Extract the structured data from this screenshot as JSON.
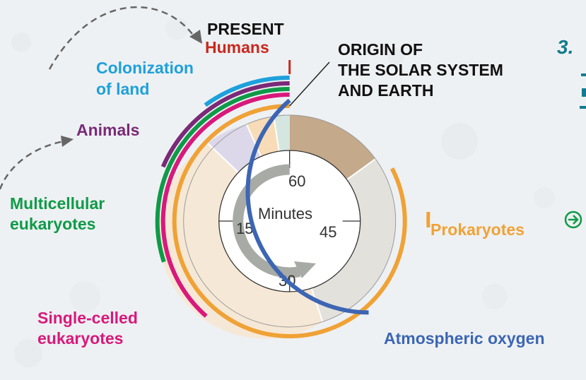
{
  "labels": {
    "present": "PRESENT",
    "humans": "Humans",
    "origin_line1": "ORIGIN OF",
    "origin_line2": "THE SOLAR SYSTEM",
    "origin_line3": "AND EARTH",
    "colonization_line1": "Colonization",
    "colonization_line2": "of land",
    "animals": "Animals",
    "multicellular_line1": "Multicellular",
    "multicellular_line2": "eukaryotes",
    "prokaryotes": "Prokaryotes",
    "single_celled_line1": "Single-celled",
    "single_celled_line2": "eukaryotes",
    "atmospheric_oxygen": "Atmospheric oxygen",
    "clipped_heading": "3."
  },
  "clock": {
    "unit": "Minutes",
    "tick_60": "60",
    "tick_15": "15",
    "tick_45": "45",
    "tick_30": "30"
  },
  "colors": {
    "humans": "#c8281e",
    "colonization": "#1ea0dc",
    "animals": "#7a2a78",
    "multicellular": "#0f9a48",
    "single_celled": "#d8197b",
    "oxygen": "#3c66b4",
    "prokaryotes": "#f0a236",
    "heading_teal": "#137c8e",
    "arrow_gray": "#666666",
    "nav_green": "#0f9a48"
  },
  "icons": {
    "next": "arrow-right-circle-icon"
  }
}
